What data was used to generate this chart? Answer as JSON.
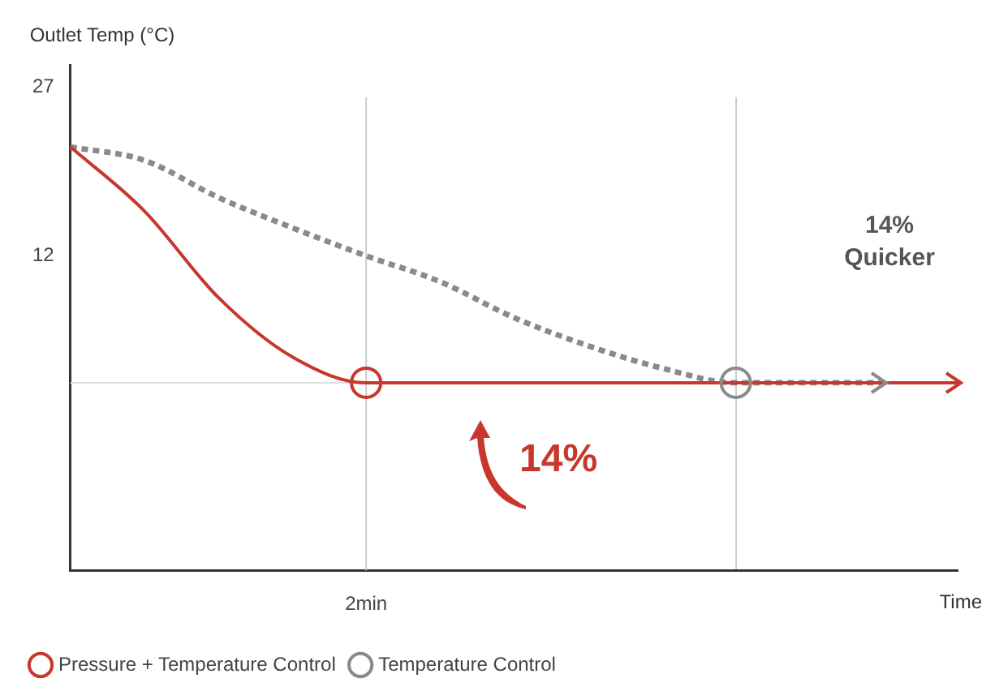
{
  "chart_data": {
    "type": "line",
    "ylabel": "Outlet Temp (°C)",
    "xlabel": "Time",
    "categories": [
      null,
      null,
      null,
      null,
      "2min",
      null,
      null,
      null,
      null,
      null,
      null,
      null,
      null
    ],
    "ylim": [
      -16,
      29
    ],
    "yticks": [
      27,
      12
    ],
    "grid": false,
    "legend": "bottom left",
    "line_style": "solid",
    "series": [
      {
        "name": "Pressure + Temperature Control",
        "color": "#c8372d",
        "values": [
          21.7,
          16,
          8.3,
          3,
          0.7,
          0.7,
          0.7,
          0.7,
          0.7,
          0.7,
          0.7,
          0.7,
          0.7
        ]
      },
      {
        "name": "Temperature Control",
        "color": "#8a8a8a",
        "line_style": "dashed",
        "values": [
          21.7,
          20.5,
          17.2,
          14.5,
          12,
          9.7,
          6.5,
          4,
          2,
          0.7,
          0.7,
          0.7,
          null
        ]
      },
      {
        "type": "scatter",
        "marker": "circle",
        "color": "#c8372d",
        "values": [
          null,
          null,
          null,
          null,
          0.7,
          null,
          null,
          null,
          null,
          null,
          null,
          null,
          null
        ]
      },
      {
        "type": "scatter",
        "marker": "circle",
        "color": "#8a8a8a",
        "values": [
          null,
          null,
          null,
          null,
          null,
          null,
          null,
          null,
          null,
          0.7,
          null,
          null,
          null
        ]
      }
    ],
    "ref_lines": [
      {
        "axis": "x",
        "value": "2min",
        "color": "#cccccc"
      },
      {
        "axis": "y",
        "value": 0.7,
        "color": "#dddddd"
      }
    ],
    "annotations": [
      "14%\nQuicker",
      "14%"
    ]
  }
}
